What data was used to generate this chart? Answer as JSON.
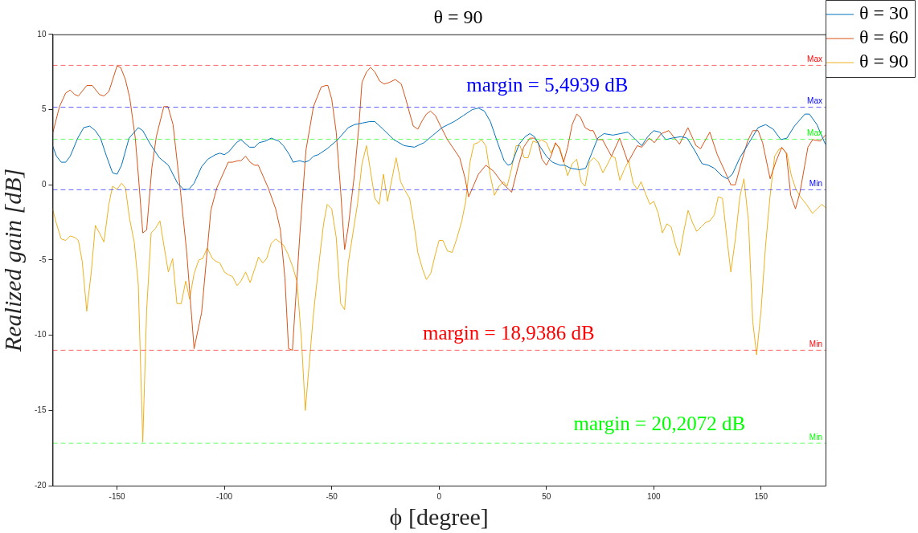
{
  "chart_data": {
    "type": "line",
    "title": "θ = 90",
    "xlabel": "ϕ [degree]",
    "ylabel": "Realized gain [dB]",
    "xlim": [
      -180,
      180
    ],
    "xticks": [
      -150,
      -100,
      -50,
      0,
      50,
      100,
      150
    ],
    "ylim": [
      -20,
      10
    ],
    "yticks": [
      -20,
      -15,
      -10,
      -5,
      0,
      5,
      10
    ],
    "grid": false,
    "legend": "top right",
    "marker": "none",
    "line_style": "solid",
    "series": [
      {
        "name": "θ = 30",
        "color": "#0072bd",
        "x": [
          -180,
          -178.2,
          -176,
          -173.9,
          -171.8,
          -168.3,
          -165.5,
          -162.7,
          -160.1,
          -157.7,
          -154.9,
          -152.1,
          -150,
          -147.9,
          -144.4,
          -140.1,
          -138,
          -134.5,
          -130.3,
          -126.1,
          -121.8,
          -119,
          -116.5,
          -114.1,
          -110.6,
          -107.7,
          -104.2,
          -102.1,
          -100,
          -97.9,
          -94.4,
          -92.3,
          -88.3,
          -85.9,
          -83.8,
          -81,
          -78.2,
          -74.6,
          -72.5,
          -69.7,
          -68,
          -64.8,
          -62.7,
          -60.6,
          -58.5,
          -56.3,
          -52.1,
          -47.2,
          -42.3,
          -39.4,
          -35.9,
          -32.4,
          -29.9,
          -26.1,
          -21.1,
          -16.2,
          -11.5,
          -7,
          -2.8,
          1.4,
          7,
          11.3,
          15.5,
          18.3,
          21.1,
          23.9,
          27.5,
          30.3,
          32.1,
          33.8,
          37.3,
          40.1,
          42.3,
          44.4,
          47.2,
          50,
          52.8,
          56.3,
          58.5,
          61.3,
          65.5,
          68.3,
          71.1,
          73.9,
          76.8,
          81,
          84.5,
          88,
          91.5,
          94.4,
          97.2,
          100,
          102.8,
          105.6,
          108.5,
          112.7,
          115.5,
          119,
          122.5,
          125.4,
          128.2,
          131.7,
          134.2,
          136.6,
          140.1,
          144.4,
          148.6,
          152.1,
          155.6,
          159.2,
          162,
          165.5,
          170.4,
          172.5,
          176,
          179.9
        ],
        "values": [
          2.6,
          1.9,
          1.5,
          1.5,
          1.9,
          3.1,
          3.8,
          3.9,
          3.6,
          3.1,
          1.9,
          0.8,
          0.7,
          1.3,
          3.1,
          3.8,
          3.6,
          2.7,
          1.8,
          1.3,
          0.1,
          -0.3,
          -0.3,
          0.1,
          1.2,
          1.7,
          2,
          2.1,
          2,
          2.2,
          2.8,
          3,
          2.5,
          2.5,
          2.8,
          2.9,
          3.1,
          2.9,
          2.6,
          2,
          1.5,
          1.6,
          1.5,
          1.6,
          1.9,
          2,
          2.4,
          3,
          3.8,
          4,
          4.1,
          4.2,
          4.2,
          3.7,
          3,
          2.6,
          2.5,
          2.8,
          3.3,
          3.8,
          4.2,
          4.6,
          5,
          5.1,
          4.9,
          4.2,
          2.7,
          1.6,
          1.3,
          1.4,
          2.7,
          3.2,
          3.4,
          3.2,
          2.5,
          1.9,
          1.5,
          1.3,
          1.3,
          1.1,
          1,
          1.1,
          2.1,
          3.1,
          3.4,
          3.3,
          3.4,
          3.5,
          3,
          2.6,
          3.2,
          3.6,
          3.5,
          3,
          3.1,
          3.2,
          3.1,
          2.3,
          1.4,
          1.3,
          1.1,
          0.6,
          0.4,
          0.7,
          1.8,
          2.8,
          3.8,
          4,
          3.7,
          3,
          3.1,
          3.9,
          4.7,
          4.7,
          4,
          2.7
        ]
      },
      {
        "name": "θ = 60",
        "color": "#d95319",
        "x": [
          -180,
          -176.8,
          -173.9,
          -171.8,
          -169.7,
          -168,
          -164.1,
          -161.5,
          -158.2,
          -156.1,
          -153.8,
          -150,
          -148.3,
          -146.1,
          -144.1,
          -141.5,
          -140.1,
          -138,
          -136.2,
          -133.8,
          -131.7,
          -128.2,
          -126.3,
          -123.9,
          -120.4,
          -117.6,
          -114.1,
          -110.6,
          -106.3,
          -103.5,
          -100.7,
          -98.2,
          -96.2,
          -93.7,
          -92.3,
          -90.1,
          -88,
          -85.9,
          -84.2,
          -79.6,
          -76.1,
          -73.9,
          -71.8,
          -70.1,
          -68.3,
          -64.8,
          -62,
          -58.5,
          -54.9,
          -52.8,
          -51.8,
          -50,
          -47.9,
          -45.8,
          -44,
          -42.3,
          -39.4,
          -37.3,
          -35.9,
          -33.8,
          -31.9,
          -29.9,
          -27.7,
          -25.6,
          -23.2,
          -20.4,
          -17.6,
          -15.5,
          -13.4,
          -12,
          -9.9,
          -7.7,
          -5.9,
          -4,
          -1.7,
          0.7,
          3.9,
          7.7,
          9.6,
          12,
          13.8,
          15.9,
          18.3,
          21.8,
          25.4,
          29.6,
          33.8,
          36.6,
          39.4,
          42.3,
          44.4,
          46.2,
          47.9,
          50,
          52.1,
          54.2,
          56.1,
          58,
          59.9,
          62,
          64.1,
          65.8,
          68,
          70.4,
          71.8,
          73.7,
          76.1,
          80.3,
          84.1,
          88,
          92.3,
          94.4,
          97.9,
          100.3,
          103.5,
          107,
          112,
          115.9,
          119.7,
          121.8,
          126.1,
          129.6,
          133.1,
          135.9,
          138,
          140.8,
          143.7,
          146.1,
          148.6,
          150.7,
          154.2,
          156.8,
          159.6,
          161.7,
          163.8,
          166,
          168.1,
          171.8,
          174,
          177.5,
          179.9
        ],
        "values": [
          3.4,
          5.2,
          6.1,
          6.3,
          6,
          5.9,
          6.6,
          6.6,
          6,
          5.9,
          6.2,
          7.9,
          7.8,
          7,
          5.8,
          3.1,
          0.7,
          -3.2,
          -3,
          1.1,
          3.2,
          5.2,
          5.2,
          4,
          -0.5,
          -4.4,
          -10.9,
          -8.5,
          -1.7,
          -0.2,
          0.7,
          1.5,
          1.5,
          1.6,
          1.6,
          1.9,
          1.5,
          1.3,
          1.3,
          -0.2,
          -1.6,
          -3,
          -6.2,
          -10.9,
          -11,
          -3.2,
          2.3,
          5.2,
          6.5,
          6.6,
          6.6,
          5.7,
          3.5,
          -0.5,
          -4.3,
          -2.8,
          0.7,
          4,
          6.8,
          7.5,
          7.8,
          7.5,
          6.9,
          6.7,
          6.8,
          7,
          6.7,
          5.7,
          4.6,
          3.9,
          3.7,
          4.3,
          4.7,
          4.9,
          4.6,
          3.9,
          3,
          2.2,
          1.8,
          0.5,
          -0.8,
          -0.1,
          0.7,
          1.3,
          0.9,
          0.1,
          -0.5,
          1.1,
          2.5,
          3.1,
          3.1,
          2.8,
          1.7,
          1.3,
          1.9,
          2.8,
          2.4,
          1.5,
          2.5,
          4,
          4.7,
          4.5,
          3.8,
          3.6,
          3.6,
          3,
          3,
          1.9,
          3.1,
          1.5,
          2.6,
          2.5,
          3.1,
          2.8,
          3.4,
          3.6,
          2.7,
          3.8,
          2.6,
          2.4,
          3.5,
          2,
          0.9,
          0,
          0,
          1.5,
          2.9,
          3.6,
          3.6,
          2.8,
          0.4,
          1.5,
          2.5,
          2.1,
          -0.7,
          -1.6,
          -0.5,
          2.5,
          3,
          2.9,
          3.3
        ]
      },
      {
        "name": "θ = 90",
        "color": "#edb120",
        "x": [
          -180,
          -178.2,
          -176,
          -173.9,
          -171.8,
          -169.7,
          -168,
          -166.2,
          -164.1,
          -162,
          -160.1,
          -158.2,
          -156.1,
          -153.8,
          -152.1,
          -150,
          -147.9,
          -146.1,
          -144.1,
          -142,
          -140.1,
          -138,
          -136.2,
          -134.1,
          -132.1,
          -130,
          -128.2,
          -126.1,
          -124.1,
          -122.1,
          -120.1,
          -118,
          -116.2,
          -114.1,
          -111.9,
          -110.1,
          -108,
          -105.6,
          -103.8,
          -102.1,
          -100,
          -97.9,
          -96.2,
          -94.1,
          -92.3,
          -90.1,
          -88,
          -85.9,
          -84.1,
          -82.1,
          -80.3,
          -78.2,
          -76.1,
          -72.5,
          -70.4,
          -68.3,
          -66.2,
          -64.1,
          -62.3,
          -60.6,
          -58.5,
          -57.7,
          -55.6,
          -53.8,
          -52.1,
          -50,
          -47.9,
          -45.8,
          -44,
          -42.3,
          -40.1,
          -38,
          -35.9,
          -33.8,
          -31.7,
          -29.9,
          -27.9,
          -25.9,
          -24,
          -21.8,
          -20,
          -17.9,
          -15.8,
          -13.7,
          -11.5,
          -9.9,
          -7.7,
          -5.9,
          -3.9,
          -1.7,
          0,
          1.8,
          3.9,
          6.1,
          8.2,
          10.6,
          12.4,
          14.4,
          16.2,
          18.2,
          19.7,
          21.8,
          23.9,
          25.8,
          27.9,
          30,
          31.7,
          33.8,
          35.9,
          37.7,
          39.7,
          41.5,
          43.7,
          45.8,
          47.6,
          50,
          52.1,
          54.2,
          56.1,
          58,
          59.9,
          62,
          64.1,
          66.2,
          68,
          70,
          72.1,
          74.2,
          76.3,
          78.2,
          80.3,
          82,
          84.2,
          86.2,
          88.3,
          90.4,
          92.3,
          94.1,
          96.2,
          98.2,
          100,
          102.1,
          104,
          106.1,
          108.1,
          110.2,
          112,
          114.1,
          116,
          118,
          120,
          122.1,
          124.2,
          126.1,
          128.2,
          130,
          132,
          134.1,
          135.9,
          138,
          140.1,
          142,
          144.1,
          146.1,
          147.9,
          150,
          152.1,
          154.2,
          156.3,
          158.5,
          159.9,
          162,
          164.1,
          166.2,
          168.3,
          171.1,
          173.9,
          176.1,
          178.2,
          179.9
        ],
        "values": [
          -1.6,
          -2.6,
          -3.6,
          -3.7,
          -3.4,
          -3.5,
          -3.7,
          -5.1,
          -8.4,
          -5.8,
          -2.7,
          -3.2,
          -3.8,
          -1.3,
          -0.1,
          -0.3,
          0.1,
          -0.2,
          -2.3,
          -3.8,
          -6.6,
          -17.1,
          -8.3,
          -3.2,
          -2.9,
          -2.4,
          -4,
          -5.8,
          -4.9,
          -7.9,
          -7.9,
          -6.4,
          -7.6,
          -5.9,
          -5,
          -4.9,
          -4.2,
          -4.9,
          -5.1,
          -5.2,
          -5.8,
          -6,
          -6.1,
          -6.7,
          -6.4,
          -5.8,
          -6.5,
          -5.6,
          -4.8,
          -5.2,
          -4.9,
          -3.9,
          -3.6,
          -4,
          -4.6,
          -5.4,
          -6.4,
          -10.3,
          -15,
          -12.1,
          -8.6,
          -7.5,
          -4.8,
          -2.6,
          -1.3,
          -1.6,
          -3.5,
          -7.9,
          -8.3,
          -5.2,
          -3.2,
          -1.3,
          1.4,
          2.6,
          0.7,
          -0.9,
          -1.3,
          0.7,
          -1.1,
          0.5,
          1.8,
          0.2,
          -0.4,
          -0.9,
          -2.8,
          -4.5,
          -5.6,
          -6.3,
          -5.9,
          -4.6,
          -3.7,
          -3.7,
          -4.4,
          -4.5,
          -3.6,
          -2.4,
          -1.1,
          1.5,
          2.7,
          2.8,
          3,
          2.6,
          0.6,
          -0.7,
          -0.1,
          0.2,
          -0.1,
          1.1,
          2.6,
          2.6,
          1.8,
          1.8,
          2.9,
          2.8,
          3,
          2.8,
          2.1,
          2.7,
          2.5,
          1.6,
          0.6,
          1.4,
          1.7,
          0.2,
          -0.1,
          1.5,
          1.8,
          1.5,
          0.8,
          1.3,
          1.9,
          1.8,
          0.3,
          1,
          1.6,
          0.1,
          -0.3,
          0.2,
          -0.6,
          -1.3,
          -1.1,
          -1.9,
          -3.2,
          -2.6,
          -2.8,
          -4,
          -4.7,
          -3,
          -1.7,
          -2.5,
          -3.1,
          -2.8,
          -2.5,
          -2.4,
          -2,
          -0.8,
          -0.9,
          -3.6,
          -5.8,
          -3.6,
          -0.8,
          0.4,
          -2.4,
          -9.1,
          -11.3,
          -8.3,
          -4,
          -0.7,
          1.9,
          2.4,
          2.4,
          2.1,
          0.6,
          -0.3,
          -0.8,
          -1.3,
          -1.9,
          -1.6,
          -1.3,
          -1.5
        ]
      }
    ],
    "ref_lines": [
      {
        "axis": "y",
        "value": 5.16,
        "label": "Max",
        "color": "#0000ff",
        "line_style": "dashed"
      },
      {
        "axis": "y",
        "value": -0.33,
        "label": "Min",
        "color": "#0000ff",
        "line_style": "dashed"
      },
      {
        "axis": "y",
        "value": 7.94,
        "label": "Max",
        "color": "#ff0000",
        "line_style": "dashed"
      },
      {
        "axis": "y",
        "value": -11,
        "label": "Min",
        "color": "#ff0000",
        "line_style": "dashed"
      },
      {
        "axis": "y",
        "value": 3.03,
        "label": "Max",
        "color": "#00ff00",
        "line_style": "dashed"
      },
      {
        "axis": "y",
        "value": -17.18,
        "label": "Min",
        "color": "#00ff00",
        "line_style": "dashed"
      }
    ],
    "annotations": [
      "margin = 5,4939 dB",
      "margin = 18,9386 dB",
      "margin = 20,2072 dB"
    ]
  }
}
